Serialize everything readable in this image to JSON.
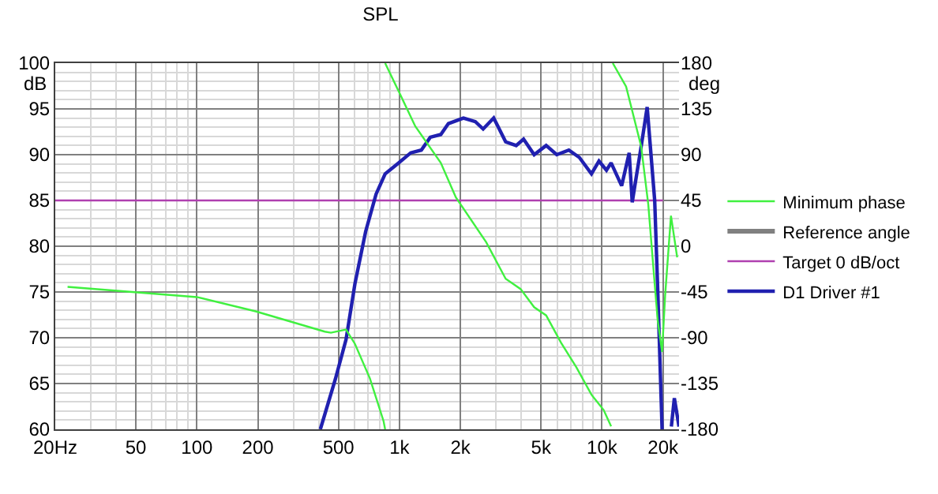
{
  "chart_data": {
    "type": "line",
    "title": "SPL",
    "ylabel": "dB",
    "y2label": "deg",
    "log": "x",
    "grid": true,
    "legend": "right",
    "marker": "none",
    "line_style": "solid",
    "xlim": [
      20,
      24000
    ],
    "xticks": [
      {
        "value": 20,
        "label": "20Hz"
      },
      {
        "value": 30,
        "label": null
      },
      {
        "value": 40,
        "label": null
      },
      {
        "value": 50,
        "label": "50"
      },
      {
        "value": 60,
        "label": null
      },
      {
        "value": 70,
        "label": null
      },
      {
        "value": 80,
        "label": null
      },
      {
        "value": 90,
        "label": null
      },
      {
        "value": 100,
        "label": "100"
      },
      {
        "value": 200,
        "label": "200"
      },
      {
        "value": 300,
        "label": null
      },
      {
        "value": 400,
        "label": null
      },
      {
        "value": 500,
        "label": "500"
      },
      {
        "value": 600,
        "label": null
      },
      {
        "value": 700,
        "label": null
      },
      {
        "value": 800,
        "label": null
      },
      {
        "value": 900,
        "label": null
      },
      {
        "value": 1000,
        "label": "1k"
      },
      {
        "value": 2000,
        "label": "2k"
      },
      {
        "value": 3000,
        "label": null
      },
      {
        "value": 4000,
        "label": null
      },
      {
        "value": 5000,
        "label": "5k"
      },
      {
        "value": 6000,
        "label": null
      },
      {
        "value": 7000,
        "label": null
      },
      {
        "value": 8000,
        "label": null
      },
      {
        "value": 9000,
        "label": null
      },
      {
        "value": 10000,
        "label": "10k"
      },
      {
        "value": 20000,
        "label": "20k"
      }
    ],
    "ylim": [
      60,
      100
    ],
    "yticks": [
      60,
      65,
      70,
      75,
      80,
      85,
      90,
      95,
      100
    ],
    "y2lim": [
      -180,
      180
    ],
    "y2ticks": [
      -180,
      -135,
      -90,
      -45,
      0,
      45,
      90,
      135,
      180
    ],
    "series": [
      {
        "name": "Minimum phase",
        "color": "#40f040",
        "axis": "y2",
        "x": [
          23,
          100,
          195,
          428,
          459,
          545,
          603,
          715,
          835,
          850,
          null,
          850,
          1010,
          1197,
          1600,
          1900,
          2680,
          3345,
          3960,
          4625,
          5300,
          6280,
          7470,
          8870,
          10190,
          11090,
          null,
          11300,
          13150,
          14100,
          15610,
          16920,
          18200,
          18840,
          19800,
          20500,
          21900,
          23500
        ],
        "values": [
          -40,
          -50,
          -64,
          -84,
          -85,
          -82,
          -96,
          -130,
          -172,
          -180,
          null,
          180,
          149,
          118,
          82,
          48,
          4,
          -32,
          -42,
          -60,
          -68,
          -95,
          -119,
          -146,
          -161,
          -177,
          null,
          180,
          157,
          133,
          98,
          41,
          -37,
          -73,
          -104,
          -48,
          30,
          -11
        ]
      },
      {
        "name": "Reference angle",
        "color": "#808080",
        "axis": "y2"
      },
      {
        "name": "Target 0 dB/oct",
        "color": "#b040b0",
        "x": [
          20,
          20000
        ],
        "values": [
          85,
          85
        ]
      },
      {
        "name": "D1 Driver #1",
        "color": "#2020b0",
        "x": [
          407,
          483,
          545,
          603,
          681,
          767,
          850,
          991,
          1137,
          1282,
          1420,
          1600,
          1745,
          2070,
          2370,
          2590,
          2920,
          3345,
          3770,
          4100,
          4625,
          5300,
          5980,
          6860,
          7730,
          8870,
          9660,
          10520,
          11090,
          12500,
          13620,
          14100,
          14840,
          15610,
          16710,
          18200,
          18840,
          19800,
          null,
          22000,
          22760,
          24000
        ],
        "values": [
          60,
          65.5,
          69.8,
          75.9,
          81.6,
          85.7,
          87.9,
          89.1,
          90.2,
          90.5,
          91.9,
          92.2,
          93.4,
          94.0,
          93.6,
          92.8,
          94.0,
          91.4,
          91.0,
          91.7,
          90.0,
          91.0,
          90.0,
          90.5,
          89.7,
          87.9,
          89.3,
          88.3,
          89.1,
          86.6,
          90.2,
          84.8,
          87.9,
          90.9,
          95.2,
          85.0,
          75.3,
          60,
          null,
          60.3,
          63.4,
          60.3
        ]
      }
    ]
  }
}
